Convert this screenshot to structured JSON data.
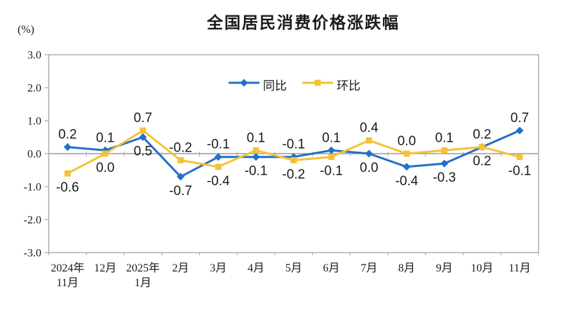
{
  "chart_data": {
    "type": "line",
    "title": "全国居民消费价格涨跌幅",
    "unit_label": "(%)",
    "categories": [
      [
        "2024年",
        "11月"
      ],
      [
        "12月"
      ],
      [
        "2025年",
        "1月"
      ],
      [
        "2月"
      ],
      [
        "3月"
      ],
      [
        "4月"
      ],
      [
        "5月"
      ],
      [
        "6月"
      ],
      [
        "7月"
      ],
      [
        "8月"
      ],
      [
        "9月"
      ],
      [
        "10月"
      ],
      [
        "11月"
      ]
    ],
    "series": [
      {
        "name": "同比",
        "marker": "diamond",
        "color": "#2171C7",
        "values": [
          0.2,
          0.1,
          0.5,
          -0.7,
          -0.1,
          -0.1,
          -0.1,
          0.1,
          0.0,
          -0.4,
          -0.3,
          0.2,
          0.7
        ]
      },
      {
        "name": "环比",
        "marker": "square",
        "color": "#F5C236",
        "values": [
          -0.6,
          0.0,
          0.7,
          -0.2,
          -0.4,
          0.1,
          -0.2,
          -0.1,
          0.4,
          0.0,
          0.1,
          0.2,
          -0.1
        ]
      }
    ],
    "y_axis": {
      "min": -3.0,
      "max": 3.0,
      "step": 1.0,
      "tick_labels": [
        "3.0",
        "2.0",
        "1.0",
        "0.0",
        "-1.0",
        "-2.0",
        "-3.0"
      ]
    },
    "grid": "zero-line-only",
    "legend_position": "top-center-inside",
    "colors": {
      "axis": "#A8A8A8",
      "zero_line": "#9C9C9C",
      "text": "#1A1A1A"
    }
  }
}
